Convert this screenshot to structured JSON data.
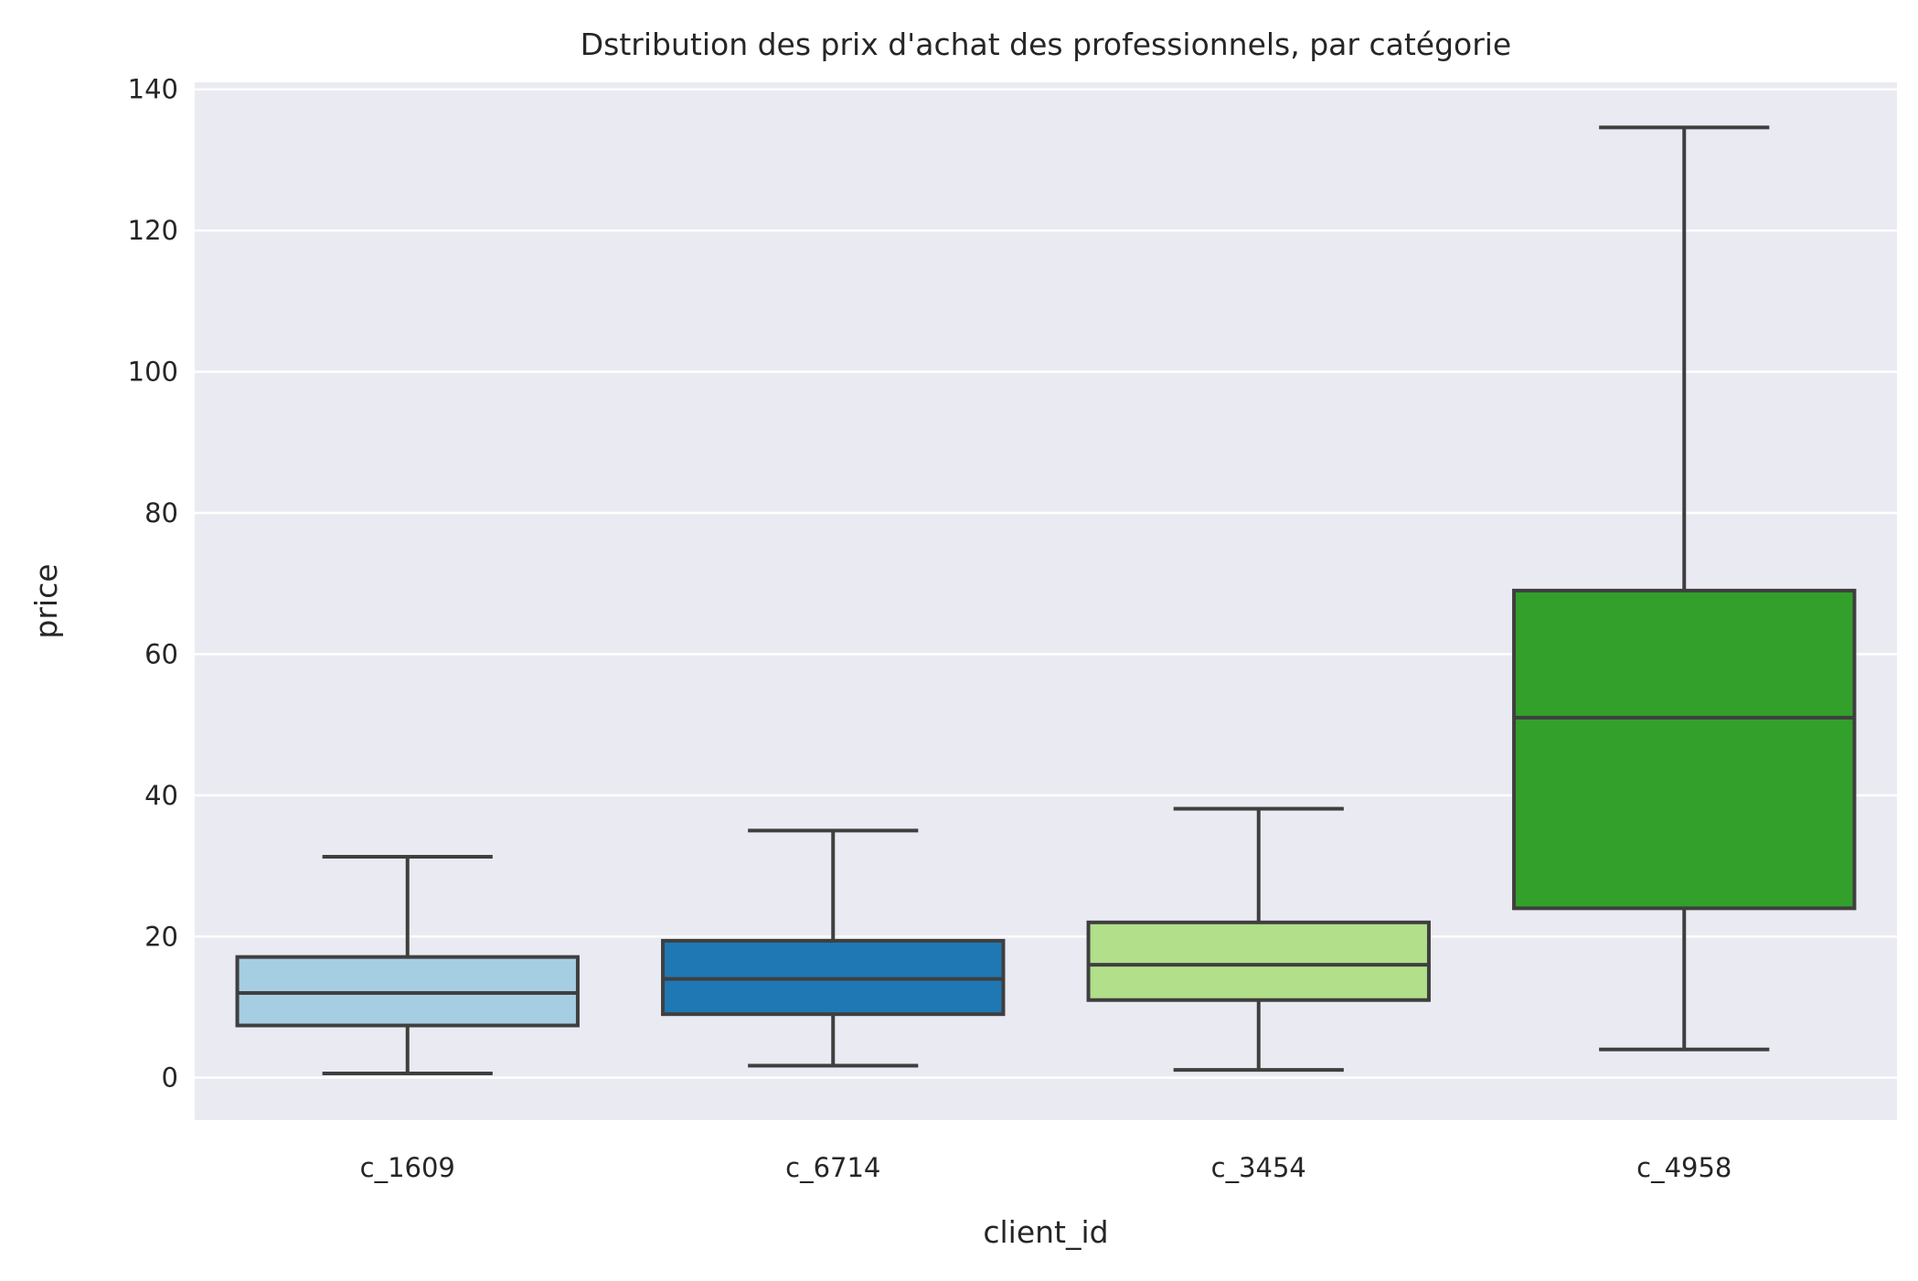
{
  "chart_data": {
    "type": "box",
    "title": "Dstribution des prix d'achat des professionnels, par catégorie",
    "xlabel": "client_id",
    "ylabel": "price",
    "ylim": [
      -6,
      141
    ],
    "yticks": [
      0,
      20,
      40,
      60,
      80,
      100,
      120,
      140
    ],
    "grid": true,
    "legend": "none",
    "categories": [
      "c_1609",
      "c_6714",
      "c_3454",
      "c_4958"
    ],
    "boxes": [
      {
        "category": "c_1609",
        "whisker_low": 0.6,
        "q1": 7.4,
        "median": 12.0,
        "q3": 17.1,
        "whisker_high": 31.3,
        "color": "#a6cee3"
      },
      {
        "category": "c_6714",
        "whisker_low": 1.7,
        "q1": 9.0,
        "median": 14.0,
        "q3": 19.4,
        "whisker_high": 35.0,
        "color": "#1f78b4"
      },
      {
        "category": "c_3454",
        "whisker_low": 1.1,
        "q1": 11.0,
        "median": 16.0,
        "q3": 22.0,
        "whisker_high": 38.1,
        "color": "#b2df8a"
      },
      {
        "category": "c_4958",
        "whisker_low": 4.0,
        "q1": 24.0,
        "median": 51.0,
        "q3": 69.0,
        "whisker_high": 134.6,
        "color": "#33a02c"
      }
    ],
    "colors": {
      "plot_background": "#eaeaf2",
      "grid": "#ffffff",
      "lines": "#3f3f3f"
    }
  }
}
